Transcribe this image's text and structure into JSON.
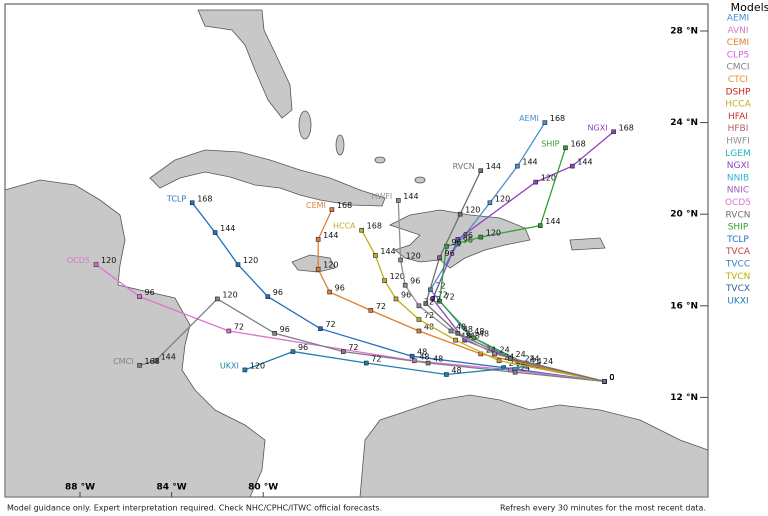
{
  "map": {
    "legend_title": "Models",
    "models": [
      {
        "name": "AEMI",
        "color": "#4a90d0"
      },
      {
        "name": "AVNI",
        "color": "#d080c0"
      },
      {
        "name": "CEMI",
        "color": "#e08030"
      },
      {
        "name": "CLP5",
        "color": "#d060e0"
      },
      {
        "name": "CMCI",
        "color": "#808080"
      },
      {
        "name": "CTCI",
        "color": "#e09020"
      },
      {
        "name": "DSHP",
        "color": "#d02020"
      },
      {
        "name": "HCCA",
        "color": "#c0b020"
      },
      {
        "name": "HFAI",
        "color": "#d03030"
      },
      {
        "name": "HFBI",
        "color": "#b06060"
      },
      {
        "name": "HWFI",
        "color": "#909090"
      },
      {
        "name": "LGEM",
        "color": "#20b0c0"
      },
      {
        "name": "NGXI",
        "color": "#9040c0"
      },
      {
        "name": "NNIB",
        "color": "#30b0d0"
      },
      {
        "name": "NNIC",
        "color": "#a060c0"
      },
      {
        "name": "OCD5",
        "color": "#e070d0"
      },
      {
        "name": "RVCN",
        "color": "#707070"
      },
      {
        "name": "SHIP",
        "color": "#30a030"
      },
      {
        "name": "TCLP",
        "color": "#2070c0"
      },
      {
        "name": "TVCA",
        "color": "#c04040"
      },
      {
        "name": "TVCC",
        "color": "#3080d0"
      },
      {
        "name": "TVCN",
        "color": "#c0b000"
      },
      {
        "name": "TVCX",
        "color": "#3060a0"
      },
      {
        "name": "UKXI",
        "color": "#2080b0"
      }
    ],
    "lat_labels": [
      {
        "value": 28,
        "label": "28 °N"
      },
      {
        "value": 24,
        "label": "24 °N"
      },
      {
        "value": 20,
        "label": "20 °N"
      },
      {
        "value": 16,
        "label": "16 °N"
      },
      {
        "value": 12,
        "label": "12 °N"
      }
    ],
    "lon_labels": [
      {
        "value": -88,
        "label": "88 °W"
      },
      {
        "value": -84,
        "label": "84 °W"
      },
      {
        "value": -80,
        "label": "80 °W"
      }
    ],
    "tracks": [
      {
        "model": "AEMI",
        "color": "#4a90d0",
        "hours": [
          0,
          24,
          48,
          72,
          96,
          120,
          144,
          168
        ],
        "lon": [
          -65.1,
          -68.8,
          -71.0,
          -72.7,
          -71.5,
          -70.1,
          -68.9,
          -67.7
        ],
        "lat": [
          12.7,
          13.5,
          14.7,
          16.7,
          18.7,
          20.5,
          22.1,
          24.0
        ]
      },
      {
        "model": "NGXI",
        "color": "#9040c0",
        "hours": [
          0,
          24,
          48,
          72,
          96,
          120,
          144,
          168
        ],
        "lon": [
          -65.1,
          -68.5,
          -71.2,
          -72.6,
          -71.5,
          -68.1,
          -66.5,
          -64.7
        ],
        "lat": [
          12.7,
          13.4,
          14.5,
          16.3,
          18.9,
          21.4,
          22.1,
          23.6
        ]
      },
      {
        "model": "SHIP",
        "color": "#30a030",
        "hours": [
          0,
          24,
          48,
          72,
          96,
          120,
          144,
          168
        ],
        "lon": [
          -65.1,
          -68.6,
          -70.8,
          -72.3,
          -72.0,
          -70.5,
          -67.9,
          -66.8
        ],
        "lat": [
          12.7,
          13.5,
          14.6,
          16.2,
          18.6,
          19.0,
          19.5,
          22.9
        ]
      },
      {
        "model": "TCLP",
        "color": "#2070c0",
        "hours": [
          0,
          24,
          48,
          72,
          96,
          120,
          144,
          168
        ],
        "lon": [
          -65.1,
          -69.5,
          -73.5,
          -77.5,
          -79.8,
          -81.1,
          -82.1,
          -83.1
        ],
        "lat": [
          12.7,
          13.3,
          13.8,
          15.0,
          16.4,
          17.8,
          19.2,
          20.5
        ]
      },
      {
        "model": "OCD5",
        "color": "#e070d0",
        "hours": [
          0,
          24,
          48,
          72,
          96,
          120
        ],
        "lon": [
          -65.1,
          -69.2,
          -73.4,
          -81.5,
          -85.4,
          -87.3
        ],
        "lat": [
          12.7,
          13.2,
          13.6,
          14.9,
          16.4,
          17.8
        ]
      },
      {
        "model": "CMCI",
        "color": "#808080",
        "hours": [
          0,
          24,
          48,
          72,
          96,
          120,
          144,
          168
        ],
        "lon": [
          -65.1,
          -69.0,
          -72.8,
          -76.5,
          -79.5,
          -82.0,
          -84.7,
          -85.4
        ],
        "lat": [
          12.7,
          13.1,
          13.5,
          14.0,
          14.8,
          16.3,
          13.6,
          13.4
        ]
      },
      {
        "model": "UKXI",
        "color": "#2080b0",
        "hours": [
          0,
          24,
          48,
          72,
          96,
          120
        ],
        "lon": [
          -65.1,
          -68.0,
          -72.0,
          -75.5,
          -78.7,
          -80.8
        ],
        "lat": [
          12.7,
          13.4,
          13.0,
          13.5,
          14.0,
          13.2
        ]
      },
      {
        "model": "CEMI",
        "color": "#e08030",
        "hours": [
          0,
          24,
          48,
          72,
          96,
          120,
          144,
          168
        ],
        "lon": [
          -65.1,
          -70.5,
          -73.2,
          -75.3,
          -77.1,
          -77.6,
          -77.6,
          -77.0
        ],
        "lat": [
          12.7,
          13.9,
          14.9,
          15.8,
          16.6,
          17.6,
          18.9,
          20.2
        ]
      },
      {
        "model": "HCCA",
        "color": "#c0b020",
        "hours": [
          0,
          24,
          48,
          72,
          96,
          120,
          144,
          168
        ],
        "lon": [
          -65.1,
          -69.7,
          -71.6,
          -73.2,
          -74.2,
          -74.7,
          -75.1,
          -75.7
        ],
        "lat": [
          12.7,
          13.6,
          14.5,
          15.4,
          16.3,
          17.1,
          18.2,
          19.3
        ]
      },
      {
        "model": "HWFI",
        "color": "#909090",
        "hours": [
          0,
          24,
          48,
          72,
          96,
          120,
          144
        ],
        "lon": [
          -65.1,
          -69.9,
          -71.8,
          -73.2,
          -73.8,
          -74.0,
          -74.1
        ],
        "lat": [
          12.7,
          13.9,
          14.9,
          16.0,
          16.9,
          18.0,
          20.6
        ]
      },
      {
        "model": "RVCN",
        "color": "#707070",
        "hours": [
          0,
          24,
          48,
          72,
          96,
          120,
          144
        ],
        "lon": [
          -65.1,
          -69.2,
          -71.5,
          -72.9,
          -72.3,
          -71.4,
          -70.5
        ],
        "lat": [
          12.7,
          13.7,
          14.8,
          16.1,
          18.1,
          20.0,
          21.9
        ]
      }
    ],
    "footer_left": "Model guidance only. Expert interpretation required. Check NHC/CPHC/ITWC official forecasts.",
    "footer_right": "Refresh every 30 minutes for the most recent data."
  }
}
